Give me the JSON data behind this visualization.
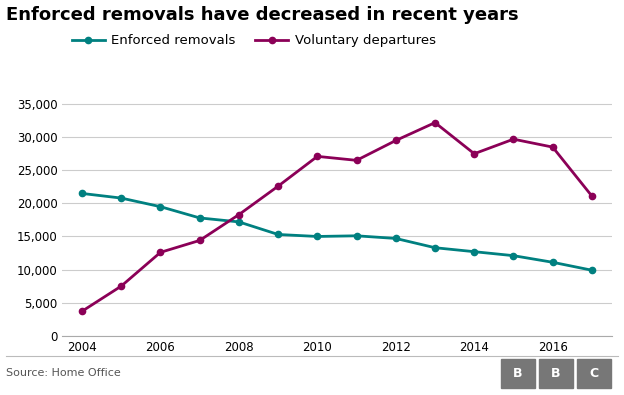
{
  "title": "Enforced removals have decreased in recent years",
  "source": "Source: Home Office",
  "years": [
    2004,
    2005,
    2006,
    2007,
    2008,
    2009,
    2010,
    2011,
    2012,
    2013,
    2014,
    2015,
    2016,
    2017
  ],
  "enforced_removals": [
    21500,
    20800,
    19500,
    17800,
    17200,
    15300,
    15000,
    15100,
    14700,
    13300,
    12700,
    12100,
    11100,
    9900
  ],
  "voluntary_departures": [
    3700,
    7500,
    12600,
    14400,
    18300,
    22600,
    27100,
    26500,
    29500,
    32200,
    27500,
    29700,
    28500,
    21100
  ],
  "enforced_color": "#008080",
  "voluntary_color": "#8B0057",
  "background_color": "#ffffff",
  "grid_color": "#cccccc",
  "ylim": [
    0,
    37000
  ],
  "yticks": [
    0,
    5000,
    10000,
    15000,
    20000,
    25000,
    30000,
    35000
  ],
  "legend_enforced": "Enforced removals",
  "legend_voluntary": "Voluntary departures",
  "title_fontsize": 13,
  "label_fontsize": 9.5,
  "tick_fontsize": 8.5,
  "bbc_box_color": "#777777"
}
